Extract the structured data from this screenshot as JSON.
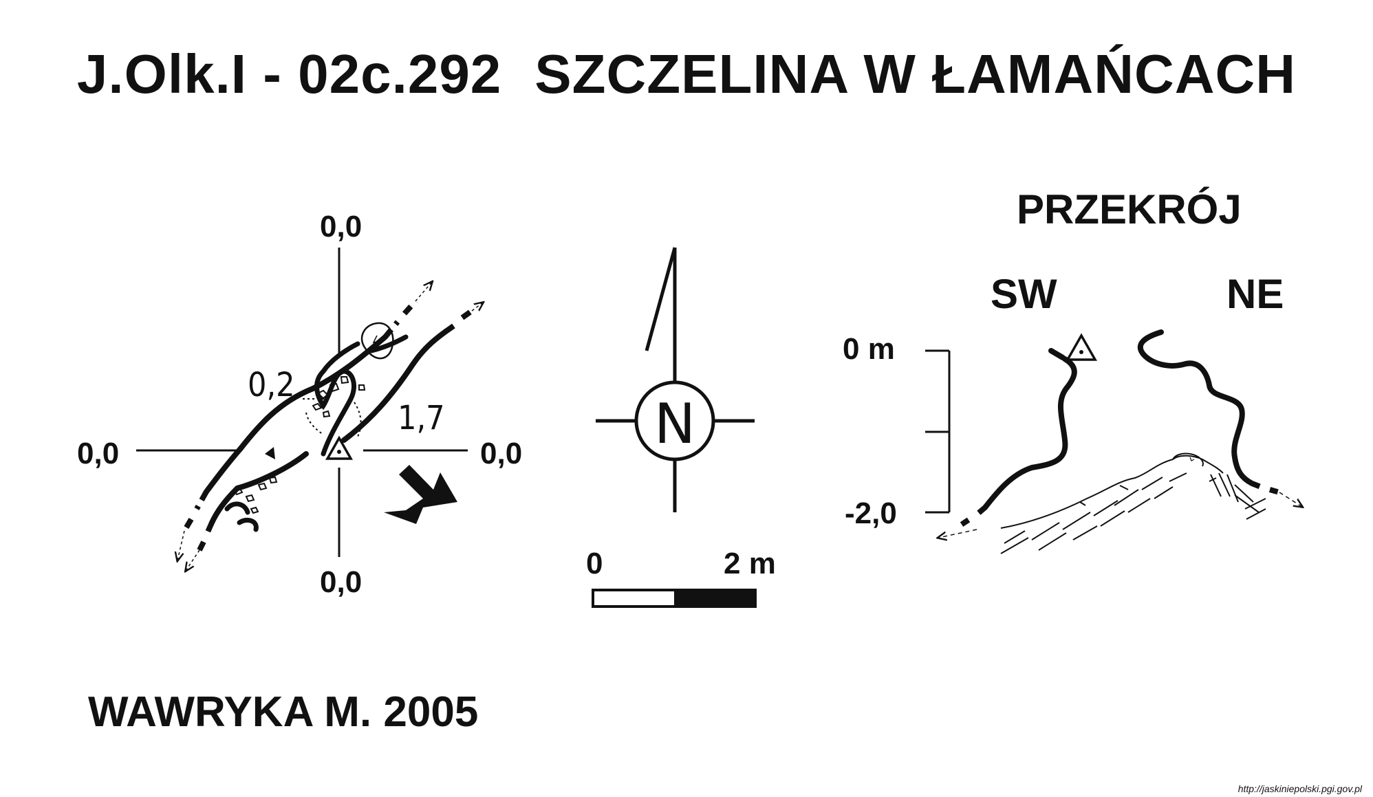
{
  "title": {
    "code": "J.Olk.I - 02c.292",
    "name": "SZCZELINA W ŁAMAŃCACH"
  },
  "plan": {
    "datum_top": "0,0",
    "datum_left": "0,0",
    "datum_right": "0,0",
    "datum_bottom": "0,0",
    "depth_a": "0,2",
    "depth_b": "1,7"
  },
  "north": {
    "letter": "N"
  },
  "scale_bar": {
    "start": "0",
    "end": "2 m"
  },
  "section": {
    "heading": "PRZEKRÓJ",
    "left_dir": "SW",
    "right_dir": "NE",
    "top_depth": "0 m",
    "bottom_depth": "-2,0"
  },
  "author": "WAWRYKA M. 2005",
  "source_url": "http://jaskiniepolski.pgi.gov.pl",
  "colors": {
    "ink": "#111111",
    "background": "#ffffff"
  }
}
